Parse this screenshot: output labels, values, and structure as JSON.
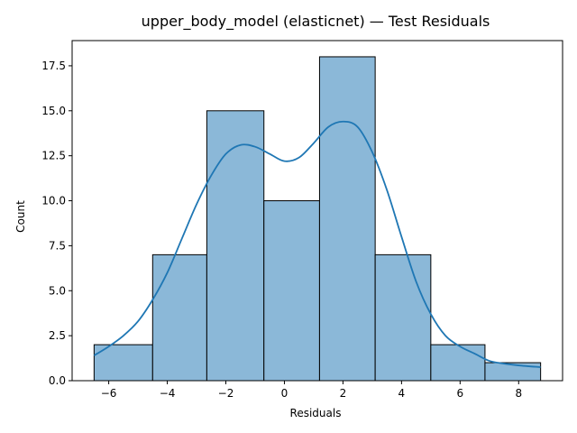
{
  "chart_data": {
    "type": "bar",
    "title": "upper_body_model (elasticnet) — Test Residuals",
    "xlabel": "Residuals",
    "ylabel": "Count",
    "xlim": [
      -7.25,
      9.5
    ],
    "ylim": [
      0,
      18.9
    ],
    "xticks": [
      -6,
      -4,
      -2,
      0,
      2,
      4,
      6,
      8
    ],
    "xtick_labels": [
      "−6",
      "−4",
      "−2",
      "0",
      "2",
      "4",
      "6",
      "8"
    ],
    "yticks": [
      0,
      2.5,
      5,
      7.5,
      10,
      12.5,
      15,
      17.5
    ],
    "ytick_labels": [
      "0.0",
      "2.5",
      "5.0",
      "7.5",
      "10.0",
      "12.5",
      "15.0",
      "17.5"
    ],
    "bins": [
      {
        "x0": -6.5,
        "x1": -4.5,
        "count": 2
      },
      {
        "x0": -4.5,
        "x1": -2.65,
        "count": 7
      },
      {
        "x0": -2.65,
        "x1": -0.7,
        "count": 15
      },
      {
        "x0": -0.7,
        "x1": 1.2,
        "count": 10
      },
      {
        "x0": 1.2,
        "x1": 3.1,
        "count": 18
      },
      {
        "x0": 3.1,
        "x1": 5.0,
        "count": 7
      },
      {
        "x0": 5.0,
        "x1": 6.85,
        "count": 2
      },
      {
        "x0": 6.85,
        "x1": 8.75,
        "count": 1
      }
    ],
    "kde": {
      "x": [
        -6.5,
        -6.0,
        -5.5,
        -5.0,
        -4.5,
        -4.0,
        -3.5,
        -3.0,
        -2.5,
        -2.0,
        -1.5,
        -1.0,
        -0.5,
        0.0,
        0.5,
        1.0,
        1.5,
        2.0,
        2.5,
        3.0,
        3.5,
        4.0,
        4.5,
        5.0,
        5.5,
        6.0,
        6.5,
        7.0,
        7.5,
        8.0,
        8.75
      ],
      "y": [
        1.4,
        1.9,
        2.5,
        3.3,
        4.5,
        6.0,
        7.9,
        9.8,
        11.4,
        12.6,
        13.1,
        13.0,
        12.6,
        12.2,
        12.4,
        13.2,
        14.1,
        14.4,
        14.1,
        12.7,
        10.6,
        8.0,
        5.5,
        3.7,
        2.5,
        1.9,
        1.5,
        1.1,
        0.95,
        0.85,
        0.75
      ]
    },
    "colors": {
      "bar_fill": "#8bb8d8",
      "bar_edge": "#000000",
      "kde_line": "#1f77b4",
      "frame": "#000000"
    },
    "grid": false,
    "legend": "none"
  }
}
